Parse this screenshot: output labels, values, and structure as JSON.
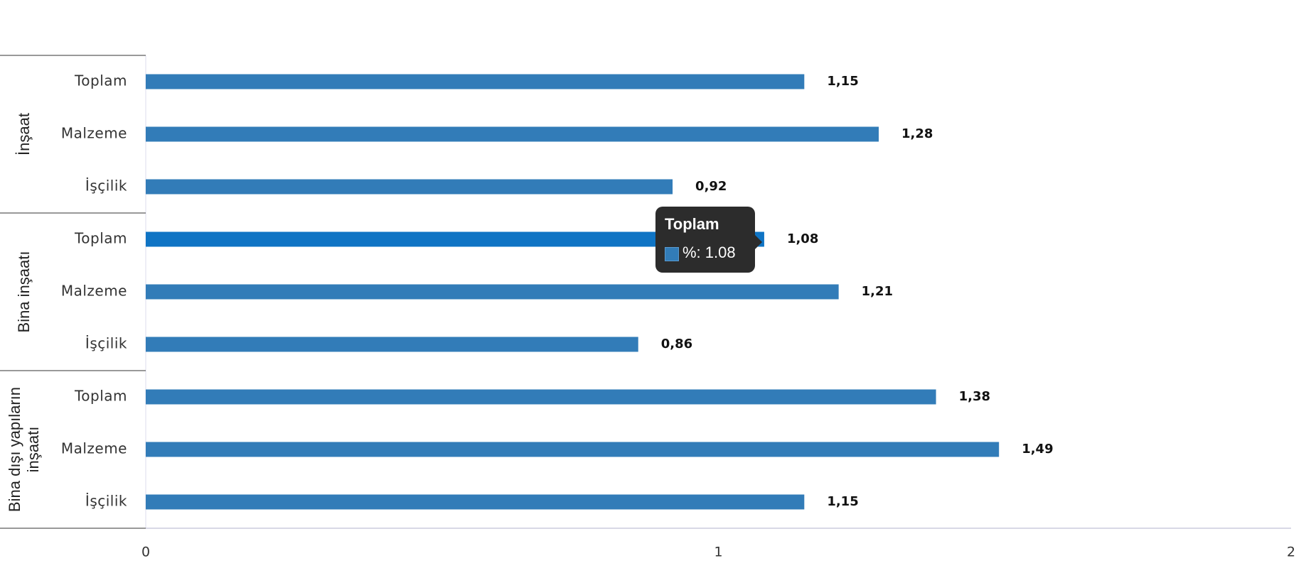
{
  "chart_data": {
    "type": "bar",
    "orientation": "horizontal",
    "color": "#327cb8",
    "groups": [
      {
        "name": "İnşaat",
        "categories": [
          "Toplam",
          "Malzeme",
          "İşçilik"
        ],
        "values": [
          1.15,
          1.28,
          0.92
        ],
        "value_labels": [
          "1,15",
          "1,28",
          "0,92"
        ]
      },
      {
        "name": "Bina inşaatı",
        "categories": [
          "Toplam",
          "Malzeme",
          "İşçilik"
        ],
        "values": [
          1.08,
          1.21,
          0.86
        ],
        "value_labels": [
          "1,08",
          "1,21",
          "0,86"
        ]
      },
      {
        "name": "Bina dışı yapıların inşaatı",
        "categories": [
          "Toplam",
          "Malzeme",
          "İşçilik"
        ],
        "values": [
          1.38,
          1.49,
          1.15
        ],
        "value_labels": [
          "1,38",
          "1,49",
          "1,15"
        ]
      }
    ],
    "xlim": [
      0,
      2
    ],
    "xticks": [
      0,
      1,
      2
    ],
    "tooltip": {
      "title": "Toplam",
      "text": "%: 1.08"
    }
  }
}
